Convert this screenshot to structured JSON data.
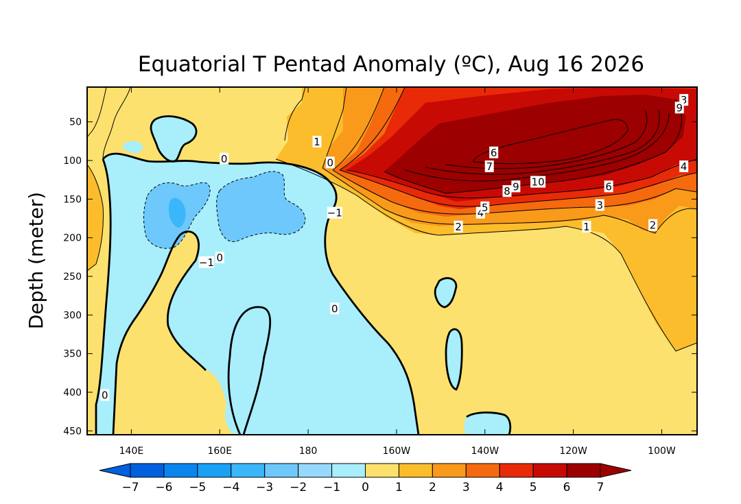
{
  "chart_data": {
    "type": "heatmap",
    "title": "Equatorial T Pentad Anomaly (ºC), Aug 16 2026",
    "ylabel": "Depth (meter)",
    "xlabel": "",
    "x_ticks": [
      "140E",
      "160E",
      "180",
      "160W",
      "140W",
      "120W",
      "100W"
    ],
    "x_tick_values": [
      140,
      160,
      180,
      200,
      220,
      240,
      260
    ],
    "xlim": [
      130,
      268
    ],
    "y_ticks": [
      "50",
      "100",
      "150",
      "200",
      "250",
      "300",
      "350",
      "400",
      "450"
    ],
    "y_tick_values": [
      50,
      100,
      150,
      200,
      250,
      300,
      350,
      400,
      450
    ],
    "ylim": [
      5,
      455
    ],
    "colorbar": {
      "levels": [
        -7,
        -6,
        -5,
        -4,
        -3,
        -2,
        -1,
        0,
        1,
        2,
        3,
        4,
        5,
        6,
        7
      ],
      "labels": [
        "−7",
        "−6",
        "−5",
        "−4",
        "−3",
        "−2",
        "−1",
        "0",
        "1",
        "2",
        "3",
        "4",
        "5",
        "6",
        "7"
      ],
      "colors": [
        "#0060dd",
        "#0a85ee",
        "#1aa0f5",
        "#3bb6fa",
        "#6ec8fc",
        "#97d8fd",
        "#a8eefb",
        "#fde16e",
        "#fbbd2c",
        "#f99a1a",
        "#f56a0e",
        "#e82a08",
        "#c80a05",
        "#9c0000"
      ]
    },
    "contour_labels": [
      {
        "text": "1",
        "x": 182,
        "y": 76
      },
      {
        "text": "0",
        "x": 161,
        "y": 98
      },
      {
        "text": "0",
        "x": 185,
        "y": 103
      },
      {
        "text": "−1",
        "x": 186,
        "y": 168
      },
      {
        "text": "−1",
        "x": 157,
        "y": 232
      },
      {
        "text": "0",
        "x": 160,
        "y": 226
      },
      {
        "text": "0",
        "x": 186,
        "y": 292
      },
      {
        "text": "0",
        "x": 134,
        "y": 404
      },
      {
        "text": "6",
        "x": 222,
        "y": 90
      },
      {
        "text": "7",
        "x": 221,
        "y": 108
      },
      {
        "text": "8",
        "x": 225,
        "y": 140
      },
      {
        "text": "9",
        "x": 227,
        "y": 134
      },
      {
        "text": "10",
        "x": 232,
        "y": 128
      },
      {
        "text": "6",
        "x": 248,
        "y": 134
      },
      {
        "text": "3",
        "x": 246,
        "y": 158
      },
      {
        "text": "4",
        "x": 219,
        "y": 168
      },
      {
        "text": "5",
        "x": 220,
        "y": 161
      },
      {
        "text": "2",
        "x": 214,
        "y": 186
      },
      {
        "text": "1",
        "x": 243,
        "y": 186
      },
      {
        "text": "2",
        "x": 258,
        "y": 184
      },
      {
        "text": "4",
        "x": 265,
        "y": 108
      },
      {
        "text": "3",
        "x": 265,
        "y": 22
      },
      {
        "text": "9",
        "x": 264,
        "y": 32
      }
    ]
  }
}
